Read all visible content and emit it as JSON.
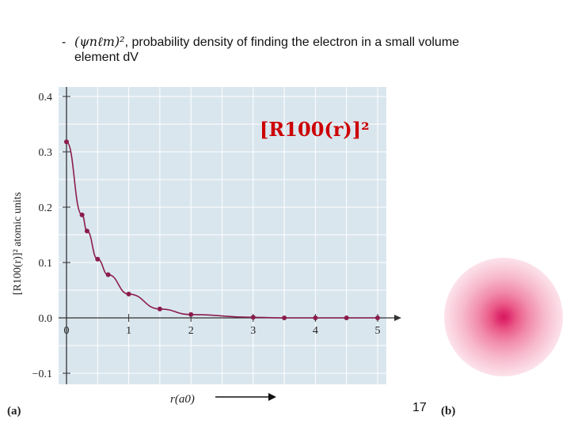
{
  "slide": {
    "bullet_dash": "-",
    "bullet_psi": "(ψnℓm)²",
    "bullet_rest": ", probability density of finding the electron in a small volume",
    "bullet_line2": "element dV",
    "label_a": "(a)",
    "label_b": "(b)",
    "page_number": "17"
  },
  "colors": {
    "plot_background": "#d9e6ee",
    "grid": "#ffffff",
    "curve": "#8b1c4c",
    "title": "#cc0000",
    "blob_center": "#d81a5f"
  },
  "chart_data": {
    "type": "line",
    "title": "[R100(r)]²",
    "xlabel": "r(a0)",
    "ylabel": "[R100(r)]² atomic units",
    "xlim": [
      0,
      5
    ],
    "ylim": [
      -0.12,
      0.41
    ],
    "x_ticks": [
      "0",
      "1",
      "2",
      "3",
      "4",
      "5"
    ],
    "y_ticks": [
      "−0.1",
      "0.0",
      "0.1",
      "0.2",
      "0.3",
      "0.4"
    ],
    "grid": true,
    "series": [
      {
        "x": [
          0,
          0.25,
          0.33,
          0.5,
          0.67,
          1.0,
          1.5,
          2.0,
          3.0,
          3.5,
          4.0,
          4.5,
          5.0
        ],
        "y": [
          0.318,
          0.186,
          0.157,
          0.106,
          0.078,
          0.043,
          0.016,
          0.006,
          0.001,
          0.0,
          0.0,
          0.0,
          0.0
        ]
      }
    ]
  }
}
